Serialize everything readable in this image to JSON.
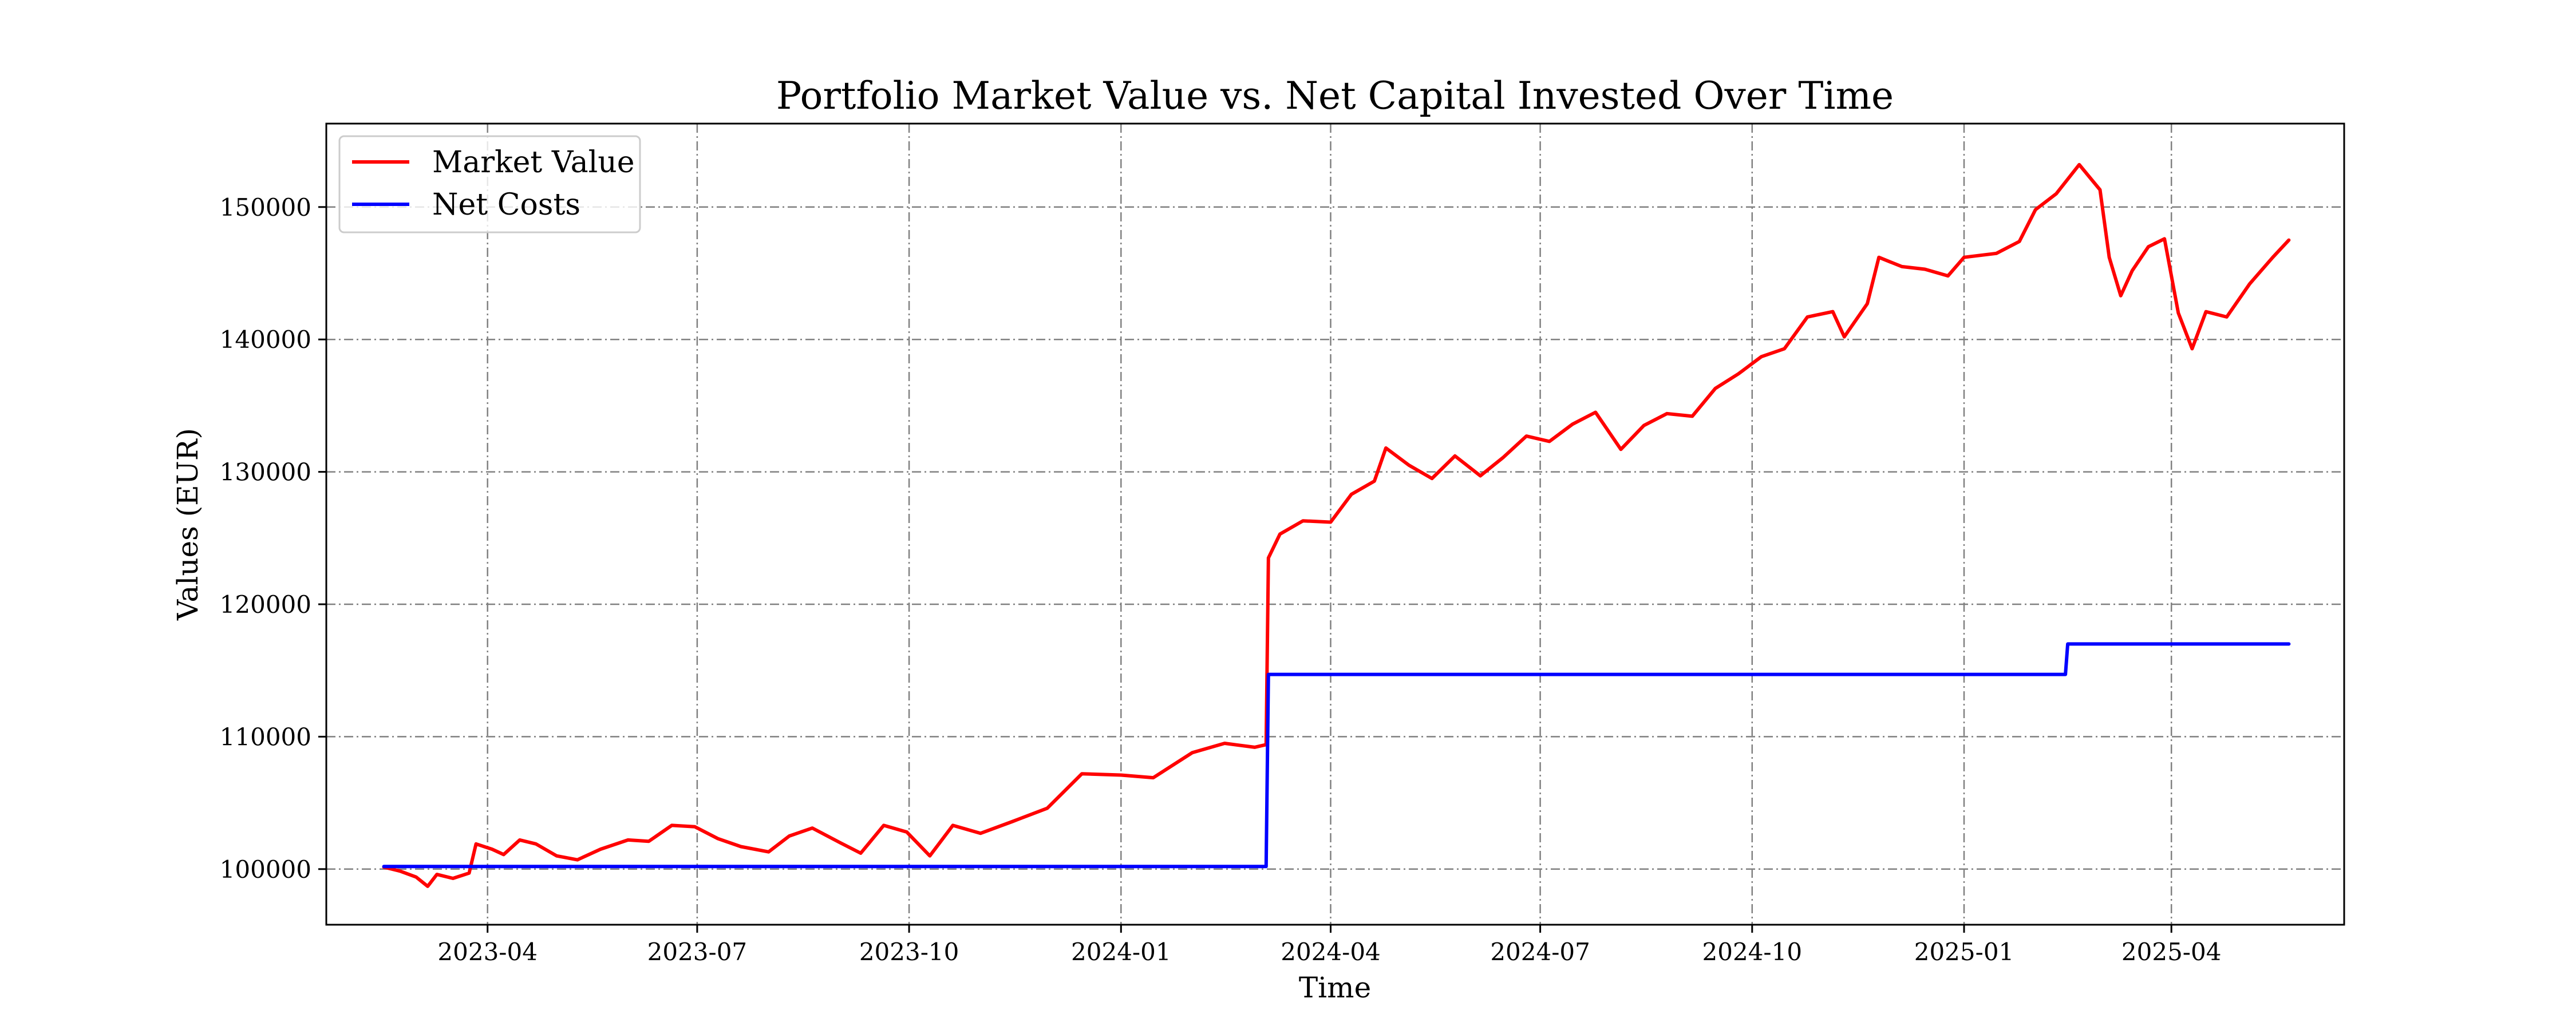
{
  "chart_data": {
    "type": "line",
    "title": "Portfolio Market Value vs. Net Capital Invested Over Time",
    "xlabel": "Time",
    "ylabel": "Values (EUR)",
    "xlim": [
      "2023-01-21",
      "2025-06-15"
    ],
    "ylim": [
      95800,
      156300
    ],
    "x_ticks": [
      "2023-04-01",
      "2023-07-01",
      "2023-10-01",
      "2024-01-01",
      "2024-04-01",
      "2024-07-01",
      "2024-10-01",
      "2025-01-01",
      "2025-04-01"
    ],
    "x_tick_labels": [
      "2023-04",
      "2023-07",
      "2023-10",
      "2024-01",
      "2024-04",
      "2024-07",
      "2024-10",
      "2025-01",
      "2025-04"
    ],
    "y_ticks": [
      100000,
      110000,
      120000,
      130000,
      140000,
      150000
    ],
    "y_tick_labels": [
      "100000",
      "110000",
      "120000",
      "130000",
      "140000",
      "150000"
    ],
    "grid": true,
    "legend_position": "top-left",
    "series": [
      {
        "name": "Market Value",
        "color": "#ff0000",
        "points": [
          [
            "2023-02-15",
            100150
          ],
          [
            "2023-02-22",
            99850
          ],
          [
            "2023-03-01",
            99400
          ],
          [
            "2023-03-06",
            98700
          ],
          [
            "2023-03-10",
            99600
          ],
          [
            "2023-03-17",
            99300
          ],
          [
            "2023-03-24",
            99700
          ],
          [
            "2023-03-27",
            101900
          ],
          [
            "2023-04-03",
            101500
          ],
          [
            "2023-04-08",
            101100
          ],
          [
            "2023-04-15",
            102200
          ],
          [
            "2023-04-22",
            101900
          ],
          [
            "2023-05-01",
            101000
          ],
          [
            "2023-05-10",
            100700
          ],
          [
            "2023-05-20",
            101500
          ],
          [
            "2023-06-01",
            102200
          ],
          [
            "2023-06-10",
            102100
          ],
          [
            "2023-06-20",
            103300
          ],
          [
            "2023-06-30",
            103200
          ],
          [
            "2023-07-10",
            102300
          ],
          [
            "2023-07-20",
            101700
          ],
          [
            "2023-08-01",
            101300
          ],
          [
            "2023-08-10",
            102500
          ],
          [
            "2023-08-20",
            103100
          ],
          [
            "2023-09-01",
            102000
          ],
          [
            "2023-09-10",
            101200
          ],
          [
            "2023-09-20",
            103300
          ],
          [
            "2023-09-30",
            102800
          ],
          [
            "2023-10-10",
            101000
          ],
          [
            "2023-10-20",
            103300
          ],
          [
            "2023-11-01",
            102700
          ],
          [
            "2023-11-15",
            103600
          ],
          [
            "2023-11-30",
            104600
          ],
          [
            "2023-12-15",
            107200
          ],
          [
            "2024-01-01",
            107100
          ],
          [
            "2024-01-15",
            106900
          ],
          [
            "2024-02-01",
            108800
          ],
          [
            "2024-02-15",
            109500
          ],
          [
            "2024-02-28",
            109200
          ],
          [
            "2024-03-04",
            109400
          ],
          [
            "2024-03-05",
            123500
          ],
          [
            "2024-03-10",
            125300
          ],
          [
            "2024-03-20",
            126300
          ],
          [
            "2024-04-01",
            126200
          ],
          [
            "2024-04-10",
            128300
          ],
          [
            "2024-04-20",
            129300
          ],
          [
            "2024-04-25",
            131800
          ],
          [
            "2024-05-05",
            130500
          ],
          [
            "2024-05-15",
            129500
          ],
          [
            "2024-05-25",
            131200
          ],
          [
            "2024-06-05",
            129700
          ],
          [
            "2024-06-15",
            131100
          ],
          [
            "2024-06-25",
            132700
          ],
          [
            "2024-07-05",
            132300
          ],
          [
            "2024-07-15",
            133600
          ],
          [
            "2024-07-25",
            134500
          ],
          [
            "2024-08-05",
            131700
          ],
          [
            "2024-08-15",
            133500
          ],
          [
            "2024-08-25",
            134400
          ],
          [
            "2024-09-05",
            134200
          ],
          [
            "2024-09-15",
            136300
          ],
          [
            "2024-09-25",
            137400
          ],
          [
            "2024-10-05",
            138700
          ],
          [
            "2024-10-15",
            139300
          ],
          [
            "2024-10-25",
            141700
          ],
          [
            "2024-11-05",
            142100
          ],
          [
            "2024-11-10",
            140200
          ],
          [
            "2024-11-20",
            142700
          ],
          [
            "2024-11-25",
            146200
          ],
          [
            "2024-12-05",
            145500
          ],
          [
            "2024-12-15",
            145300
          ],
          [
            "2024-12-25",
            144800
          ],
          [
            "2025-01-01",
            146200
          ],
          [
            "2025-01-15",
            146500
          ],
          [
            "2025-01-25",
            147400
          ],
          [
            "2025-02-01",
            149800
          ],
          [
            "2025-02-10",
            151000
          ],
          [
            "2025-02-20",
            153200
          ],
          [
            "2025-03-01",
            151300
          ],
          [
            "2025-03-05",
            146200
          ],
          [
            "2025-03-10",
            143300
          ],
          [
            "2025-03-15",
            145200
          ],
          [
            "2025-03-22",
            147000
          ],
          [
            "2025-03-29",
            147600
          ],
          [
            "2025-04-04",
            142000
          ],
          [
            "2025-04-10",
            139300
          ],
          [
            "2025-04-16",
            142100
          ],
          [
            "2025-04-25",
            141700
          ],
          [
            "2025-05-05",
            144200
          ],
          [
            "2025-05-15",
            146200
          ],
          [
            "2025-05-22",
            147500
          ]
        ]
      },
      {
        "name": "Net Costs",
        "color": "#0000ff",
        "points": [
          [
            "2023-02-15",
            100200
          ],
          [
            "2024-03-04",
            100200
          ],
          [
            "2024-03-05",
            114700
          ],
          [
            "2025-02-14",
            114700
          ],
          [
            "2025-02-15",
            117000
          ],
          [
            "2025-05-22",
            117000
          ]
        ]
      }
    ]
  }
}
